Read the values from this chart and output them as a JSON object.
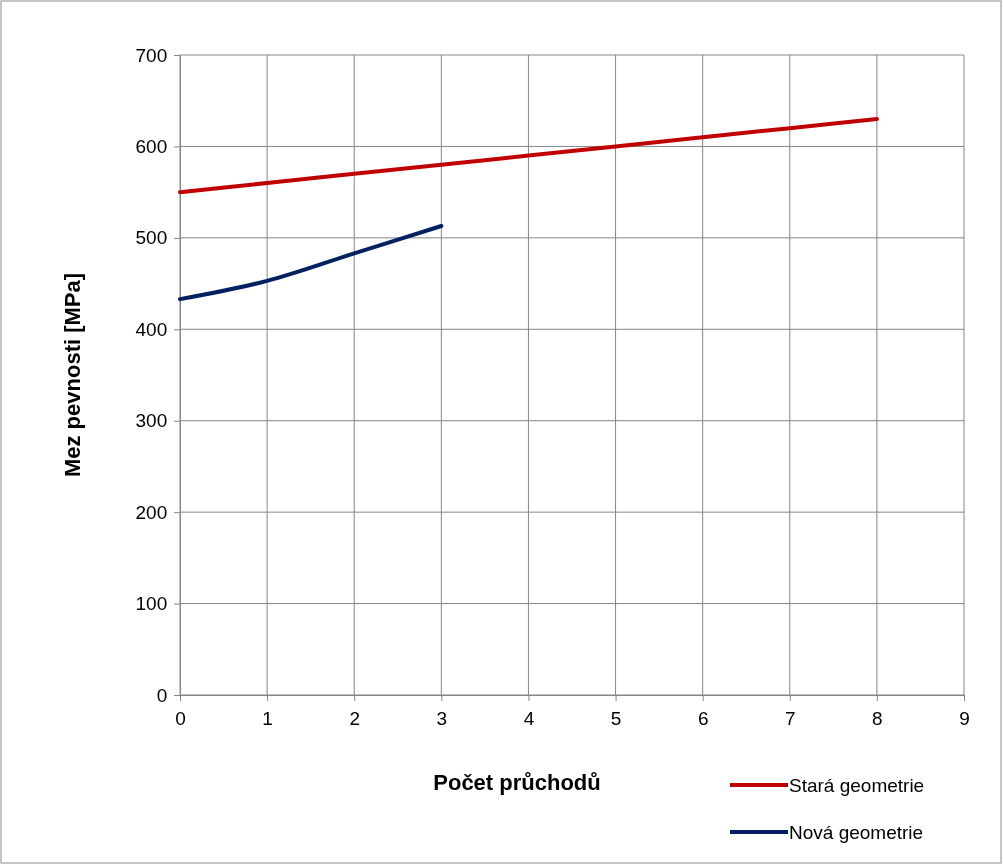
{
  "chart_data": {
    "type": "line",
    "xlabel": "Počet průchodů",
    "ylabel": "Mez pevnosti [MPa]",
    "xlim": [
      0,
      9
    ],
    "xticks": [
      0,
      1,
      2,
      3,
      4,
      5,
      6,
      7,
      8,
      9
    ],
    "ylim": [
      0,
      700
    ],
    "yticks": [
      0,
      100,
      200,
      300,
      400,
      500,
      600,
      700
    ],
    "grid": true,
    "legend": "bottom right",
    "marker": "none",
    "line_style": "solid",
    "series": [
      {
        "name": "Stará geometrie",
        "color": "#c00000",
        "x": [
          0,
          1,
          2,
          3,
          4,
          5,
          6,
          7,
          8
        ],
        "values": [
          550,
          560,
          570,
          580,
          590,
          600,
          610,
          620,
          630
        ]
      },
      {
        "name": "Nová geometrie",
        "color": "#002060",
        "x": [
          0,
          1,
          2,
          3
        ],
        "values": [
          433,
          453,
          483,
          513
        ]
      }
    ]
  }
}
